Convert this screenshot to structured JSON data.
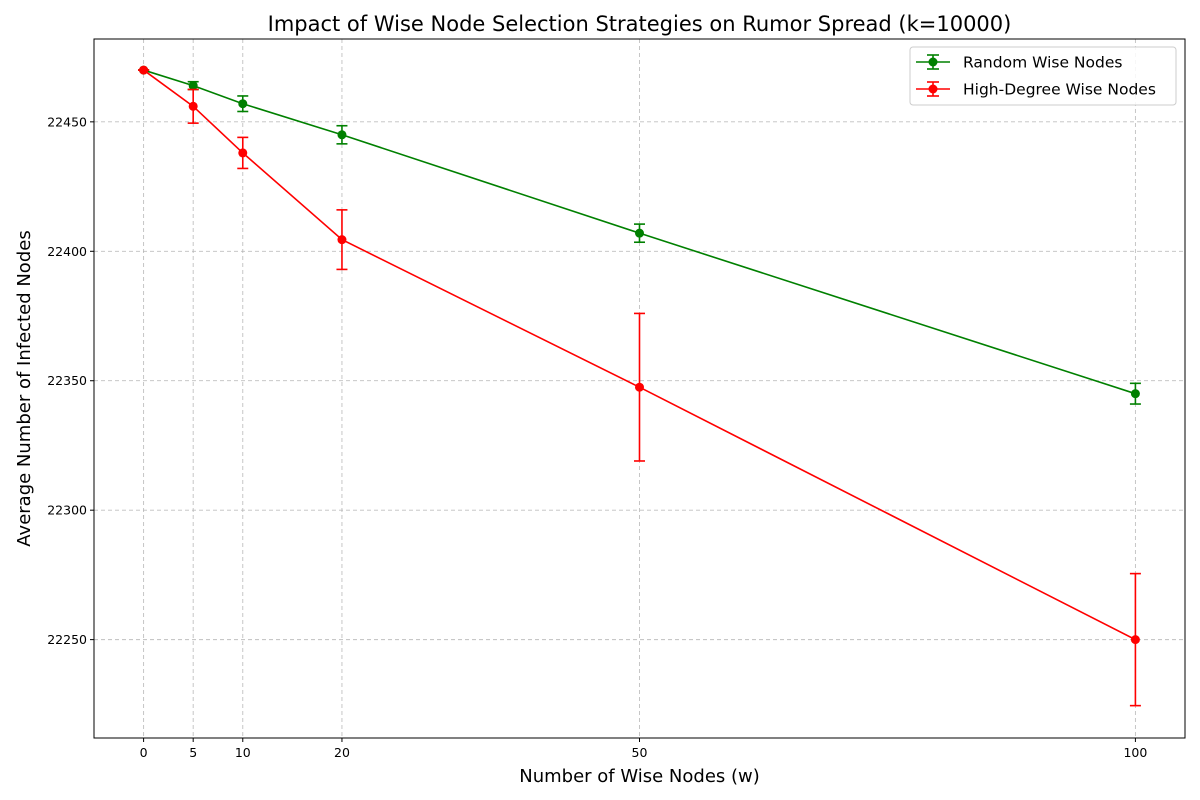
{
  "chart_data": {
    "type": "line",
    "title": "Impact of Wise Node Selection Strategies on Rumor Spread (k=10000)",
    "xlabel": "Number of Wise Nodes (w)",
    "ylabel": "Average Number of Infected Nodes",
    "x": [
      0,
      5,
      10,
      20,
      50,
      100
    ],
    "xticks": [
      0,
      5,
      10,
      20,
      50,
      100
    ],
    "yticks": [
      22250,
      22300,
      22350,
      22400,
      22450
    ],
    "xlim": [
      -5,
      105
    ],
    "ylim": [
      22212,
      22482
    ],
    "grid": true,
    "legend_position": "top-right",
    "series": [
      {
        "name": "Random Wise Nodes",
        "color": "#008000",
        "values": [
          22470,
          22464,
          22457,
          22445,
          22407,
          22345
        ],
        "errors": [
          0,
          1.5,
          3,
          3.5,
          3.5,
          4
        ]
      },
      {
        "name": "High-Degree Wise Nodes",
        "color": "#ff0000",
        "values": [
          22470,
          22456,
          22438,
          22404.5,
          22347.5,
          22250
        ],
        "errors": [
          0,
          6.5,
          6,
          11.5,
          28.5,
          25.5
        ]
      }
    ]
  }
}
